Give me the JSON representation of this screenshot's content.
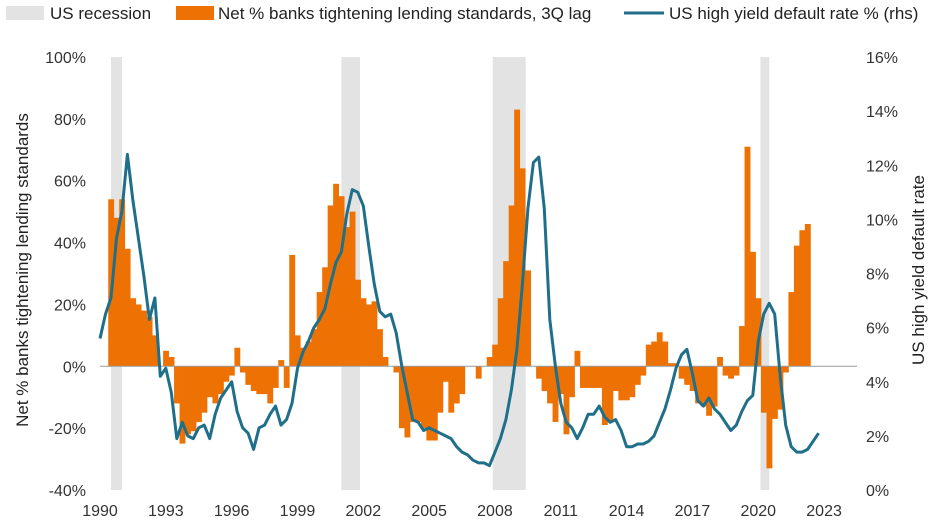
{
  "chart_data": {
    "type": "bar",
    "legend": {
      "position": "top",
      "items": [
        {
          "label": "US recession",
          "color": "#e3e3e3",
          "kind": "box"
        },
        {
          "label": "Net % banks tightening lending standards, 3Q lag",
          "color": "#ee7203",
          "kind": "box"
        },
        {
          "label": "US high yield default rate % (rhs)",
          "color": "#1f6f8b",
          "kind": "line"
        }
      ]
    },
    "ylabel": "Net % banks tightening lending standards",
    "y2label": "US high yield default rate",
    "ylim": [
      -40,
      100
    ],
    "y2lim": [
      0,
      16
    ],
    "xlim": [
      1990,
      2024.5
    ],
    "yticks": [
      "-40%",
      "-20%",
      "0%",
      "20%",
      "40%",
      "60%",
      "80%",
      "100%"
    ],
    "y2ticks": [
      "0%",
      "2%",
      "4%",
      "6%",
      "8%",
      "10%",
      "12%",
      "14%",
      "16%"
    ],
    "xticks": [
      "1990",
      "1993",
      "1996",
      "1999",
      "2002",
      "2005",
      "2008",
      "2011",
      "2014",
      "2017",
      "2020",
      "2023"
    ],
    "grid": false,
    "recessions": [
      [
        1990.5,
        1991.0
      ],
      [
        2001.0,
        2001.85
      ],
      [
        2007.9,
        2009.4
      ],
      [
        2020.1,
        2020.5
      ]
    ],
    "bar_color": "#ee7203",
    "line_color": "#1f6f8b",
    "bars": {
      "name": "Net % banks tightening lending standards, 3Q lag",
      "start": 1990.5,
      "step": 0.25,
      "values": [
        54,
        48,
        54,
        38,
        22,
        20,
        18,
        16,
        10,
        0,
        5,
        3,
        -12,
        -25,
        -22,
        -21,
        -18,
        -15,
        -10,
        -12,
        -9,
        -5,
        -3,
        6,
        -2,
        -6,
        -8,
        -9,
        -9,
        -12,
        -7,
        2,
        -7,
        36,
        10,
        6,
        8,
        12,
        24,
        32,
        52,
        59,
        55,
        45,
        50,
        28,
        22,
        20,
        21,
        12,
        3,
        0,
        -2,
        -20,
        -23,
        -18,
        -18,
        -20,
        -24,
        -24,
        -15,
        -5,
        -15,
        -12,
        -9,
        0,
        0,
        -4,
        0,
        3,
        7,
        22,
        34,
        52,
        83,
        64,
        31,
        0,
        -4,
        -8,
        -12,
        -18,
        -9,
        -22,
        -10,
        5,
        -7,
        -7,
        -7,
        -7,
        -19,
        -18,
        -8,
        -11,
        -11,
        -10,
        -6,
        -3,
        7,
        8,
        11,
        8,
        1,
        1,
        -4,
        -6,
        -8,
        -12,
        -13,
        -16,
        -13,
        3,
        -3,
        -4,
        -3,
        13,
        71,
        37,
        22,
        -15,
        -33,
        -17,
        -14,
        -2,
        24,
        39,
        44,
        46
      ]
    },
    "series": [
      {
        "name": "US high yield default rate % (rhs)",
        "points": [
          [
            1990.0,
            5.6
          ],
          [
            1990.25,
            6.5
          ],
          [
            1990.5,
            7.1
          ],
          [
            1990.75,
            9.3
          ],
          [
            1991.0,
            10.3
          ],
          [
            1991.25,
            12.4
          ],
          [
            1991.5,
            10.7
          ],
          [
            1991.75,
            9.3
          ],
          [
            1992.0,
            7.9
          ],
          [
            1992.25,
            6.3
          ],
          [
            1992.5,
            7.1
          ],
          [
            1992.75,
            4.2
          ],
          [
            1993.0,
            4.5
          ],
          [
            1993.25,
            3.6
          ],
          [
            1993.5,
            1.9
          ],
          [
            1993.75,
            2.5
          ],
          [
            1994.0,
            2.0
          ],
          [
            1994.25,
            1.9
          ],
          [
            1994.5,
            2.3
          ],
          [
            1994.75,
            2.4
          ],
          [
            1995.0,
            1.9
          ],
          [
            1995.25,
            2.8
          ],
          [
            1995.5,
            3.4
          ],
          [
            1995.75,
            3.7
          ],
          [
            1996.0,
            4.0
          ],
          [
            1996.25,
            2.9
          ],
          [
            1996.5,
            2.3
          ],
          [
            1996.75,
            2.1
          ],
          [
            1997.0,
            1.5
          ],
          [
            1997.25,
            2.3
          ],
          [
            1997.5,
            2.4
          ],
          [
            1997.75,
            2.8
          ],
          [
            1998.0,
            3.1
          ],
          [
            1998.25,
            2.4
          ],
          [
            1998.5,
            2.6
          ],
          [
            1998.75,
            3.2
          ],
          [
            1999.0,
            4.5
          ],
          [
            1999.25,
            5.1
          ],
          [
            1999.5,
            5.5
          ],
          [
            1999.75,
            6.0
          ],
          [
            2000.0,
            6.3
          ],
          [
            2000.25,
            6.7
          ],
          [
            2000.5,
            7.6
          ],
          [
            2000.75,
            8.4
          ],
          [
            2001.0,
            8.8
          ],
          [
            2001.25,
            10.2
          ],
          [
            2001.5,
            11.1
          ],
          [
            2001.75,
            11.0
          ],
          [
            2002.0,
            10.5
          ],
          [
            2002.25,
            9.0
          ],
          [
            2002.5,
            7.6
          ],
          [
            2002.75,
            6.6
          ],
          [
            2003.0,
            6.4
          ],
          [
            2003.25,
            6.5
          ],
          [
            2003.5,
            5.8
          ],
          [
            2003.75,
            4.6
          ],
          [
            2004.0,
            3.6
          ],
          [
            2004.25,
            2.6
          ],
          [
            2004.5,
            2.5
          ],
          [
            2004.75,
            2.2
          ],
          [
            2005.0,
            2.3
          ],
          [
            2005.25,
            2.2
          ],
          [
            2005.5,
            2.1
          ],
          [
            2005.75,
            2.0
          ],
          [
            2006.0,
            1.9
          ],
          [
            2006.25,
            1.6
          ],
          [
            2006.5,
            1.4
          ],
          [
            2006.75,
            1.3
          ],
          [
            2007.0,
            1.1
          ],
          [
            2007.25,
            1.0
          ],
          [
            2007.5,
            1.0
          ],
          [
            2007.75,
            0.9
          ],
          [
            2008.0,
            1.4
          ],
          [
            2008.25,
            1.9
          ],
          [
            2008.5,
            2.6
          ],
          [
            2008.75,
            3.7
          ],
          [
            2009.0,
            5.2
          ],
          [
            2009.25,
            7.6
          ],
          [
            2009.5,
            10.4
          ],
          [
            2009.75,
            12.1
          ],
          [
            2010.0,
            12.3
          ],
          [
            2010.25,
            10.4
          ],
          [
            2010.5,
            6.3
          ],
          [
            2010.75,
            4.6
          ],
          [
            2011.0,
            3.2
          ],
          [
            2011.25,
            2.5
          ],
          [
            2011.5,
            2.3
          ],
          [
            2011.75,
            1.9
          ],
          [
            2012.0,
            2.3
          ],
          [
            2012.25,
            2.8
          ],
          [
            2012.5,
            2.8
          ],
          [
            2012.75,
            3.1
          ],
          [
            2013.0,
            2.7
          ],
          [
            2013.25,
            2.5
          ],
          [
            2013.5,
            2.6
          ],
          [
            2013.75,
            2.2
          ],
          [
            2014.0,
            1.6
          ],
          [
            2014.25,
            1.6
          ],
          [
            2014.5,
            1.7
          ],
          [
            2014.75,
            1.7
          ],
          [
            2015.0,
            1.8
          ],
          [
            2015.25,
            2.0
          ],
          [
            2015.5,
            2.5
          ],
          [
            2015.75,
            3.0
          ],
          [
            2016.0,
            3.7
          ],
          [
            2016.25,
            4.5
          ],
          [
            2016.5,
            5.0
          ],
          [
            2016.75,
            5.2
          ],
          [
            2017.0,
            4.3
          ],
          [
            2017.25,
            3.3
          ],
          [
            2017.5,
            3.1
          ],
          [
            2017.75,
            3.4
          ],
          [
            2018.0,
            3.0
          ],
          [
            2018.25,
            2.8
          ],
          [
            2018.5,
            2.5
          ],
          [
            2018.75,
            2.2
          ],
          [
            2019.0,
            2.4
          ],
          [
            2019.25,
            2.9
          ],
          [
            2019.5,
            3.3
          ],
          [
            2019.75,
            3.5
          ],
          [
            2020.0,
            5.5
          ],
          [
            2020.25,
            6.5
          ],
          [
            2020.5,
            6.9
          ],
          [
            2020.75,
            6.5
          ],
          [
            2021.0,
            4.2
          ],
          [
            2021.25,
            2.4
          ],
          [
            2021.5,
            1.6
          ],
          [
            2021.75,
            1.4
          ],
          [
            2022.0,
            1.4
          ],
          [
            2022.25,
            1.5
          ],
          [
            2022.5,
            1.8
          ],
          [
            2022.75,
            2.1
          ]
        ]
      }
    ]
  }
}
